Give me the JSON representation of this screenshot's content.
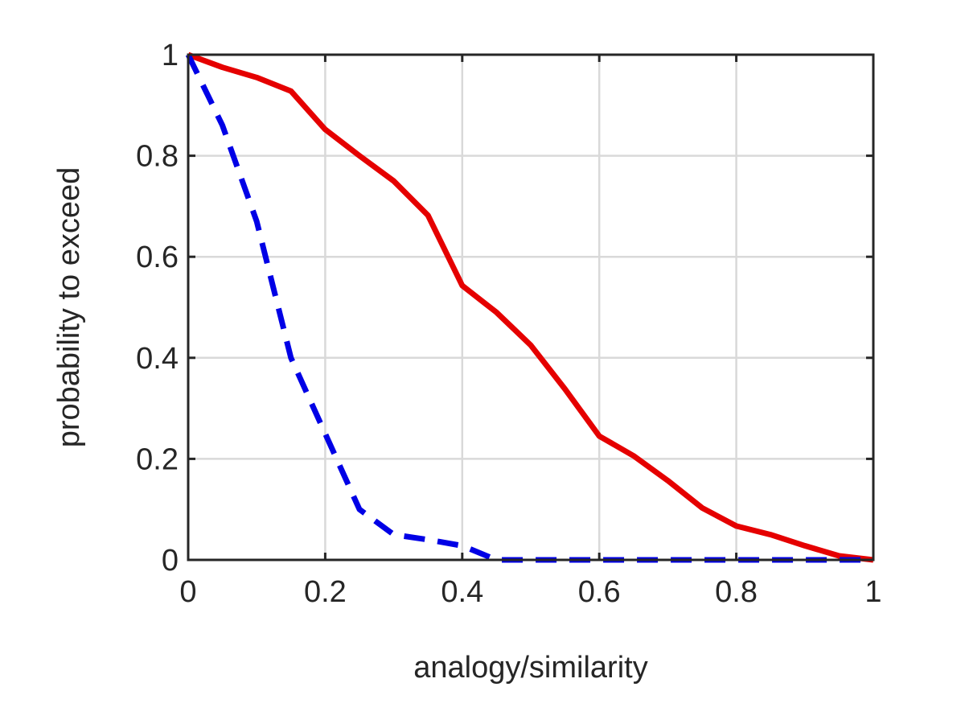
{
  "chart_data": {
    "type": "line",
    "title": "",
    "xlabel": "analogy/similarity",
    "ylabel": "probability to exceed",
    "xlim": [
      0,
      1
    ],
    "ylim": [
      0,
      1
    ],
    "xticks": [
      0,
      0.2,
      0.4,
      0.6,
      0.8,
      1
    ],
    "yticks": [
      0,
      0.2,
      0.4,
      0.6,
      0.8,
      1
    ],
    "xtick_labels": [
      "0",
      "0.2",
      "0.4",
      "0.6",
      "0.8",
      "1"
    ],
    "ytick_labels": [
      "0",
      "0.2",
      "0.4",
      "0.6",
      "0.8",
      "1"
    ],
    "grid": true,
    "legend": "none",
    "series": [
      {
        "color": "#e50000",
        "style": "solid",
        "x": [
          0,
          0.05,
          0.1,
          0.15,
          0.2,
          0.25,
          0.3,
          0.35,
          0.4,
          0.45,
          0.5,
          0.55,
          0.6,
          0.65,
          0.7,
          0.75,
          0.8,
          0.85,
          0.9,
          0.95,
          1
        ],
        "y": [
          1,
          0.975,
          0.955,
          0.928,
          0.852,
          0.8,
          0.75,
          0.682,
          0.543,
          0.49,
          0.425,
          0.338,
          0.245,
          0.206,
          0.157,
          0.103,
          0.067,
          0.05,
          0.028,
          0.008,
          0
        ]
      },
      {
        "color": "#0000e6",
        "style": "dashed",
        "x": [
          0,
          0.05,
          0.1,
          0.15,
          0.2,
          0.25,
          0.3,
          0.35,
          0.4,
          0.45,
          0.5,
          0.55,
          0.6,
          0.65,
          0.7,
          0.75,
          0.8,
          0.85,
          0.9,
          0.95,
          1
        ],
        "y": [
          1,
          0.86,
          0.67,
          0.4,
          0.25,
          0.1,
          0.05,
          0.04,
          0.028,
          0,
          0,
          0,
          0,
          0,
          0,
          0,
          0,
          0,
          0,
          0,
          0
        ]
      }
    ]
  }
}
